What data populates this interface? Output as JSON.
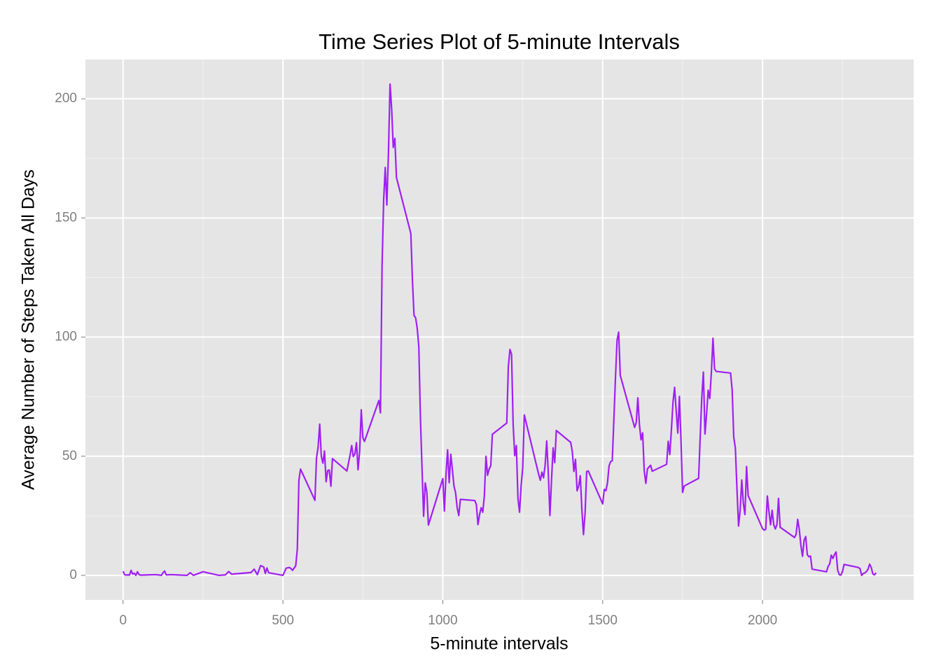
{
  "chart_data": {
    "type": "line",
    "title": "Time Series Plot of 5-minute Intervals",
    "x_label": "5-minute intervals",
    "y_label": "Average Number of Steps Taken All Days",
    "xlim": [
      -117.75,
      2472.75
    ],
    "ylim": [
      -10.3,
      216.5
    ],
    "xticks": [
      0,
      500,
      1000,
      1500,
      2000
    ],
    "yticks": [
      0,
      50,
      100,
      150,
      200
    ],
    "x_minor_ticks": [
      250,
      750,
      1250,
      1750,
      2250
    ],
    "y_minor_ticks": [
      25,
      75,
      125,
      175
    ],
    "grid": true,
    "x": [
      0,
      5,
      10,
      15,
      20,
      25,
      30,
      35,
      40,
      45,
      50,
      55,
      100,
      110,
      120,
      125,
      130,
      135,
      150,
      200,
      210,
      220,
      250,
      300,
      320,
      330,
      340,
      400,
      410,
      420,
      430,
      440,
      445,
      450,
      455,
      500,
      505,
      510,
      520,
      525,
      530,
      540,
      545,
      550,
      555,
      600,
      605,
      610,
      615,
      620,
      625,
      630,
      635,
      640,
      645,
      650,
      655,
      700,
      710,
      715,
      720,
      725,
      730,
      735,
      740,
      745,
      750,
      755,
      800,
      805,
      810,
      815,
      820,
      825,
      830,
      835,
      840,
      845,
      850,
      855,
      900,
      905,
      910,
      915,
      920,
      925,
      930,
      935,
      940,
      945,
      950,
      955,
      1000,
      1005,
      1010,
      1015,
      1020,
      1025,
      1030,
      1035,
      1040,
      1045,
      1050,
      1055,
      1100,
      1105,
      1110,
      1115,
      1120,
      1125,
      1130,
      1135,
      1140,
      1145,
      1150,
      1155,
      1200,
      1205,
      1210,
      1215,
      1220,
      1225,
      1230,
      1235,
      1240,
      1245,
      1250,
      1255,
      1300,
      1305,
      1310,
      1315,
      1320,
      1325,
      1330,
      1335,
      1340,
      1345,
      1350,
      1355,
      1400,
      1405,
      1410,
      1415,
      1420,
      1425,
      1430,
      1435,
      1440,
      1445,
      1450,
      1455,
      1500,
      1505,
      1510,
      1515,
      1520,
      1525,
      1530,
      1535,
      1540,
      1545,
      1550,
      1555,
      1600,
      1605,
      1610,
      1615,
      1620,
      1625,
      1630,
      1635,
      1640,
      1645,
      1650,
      1655,
      1700,
      1705,
      1710,
      1715,
      1720,
      1725,
      1730,
      1735,
      1740,
      1745,
      1750,
      1755,
      1800,
      1805,
      1810,
      1815,
      1820,
      1825,
      1830,
      1835,
      1840,
      1845,
      1850,
      1855,
      1900,
      1905,
      1910,
      1915,
      1920,
      1925,
      1930,
      1935,
      1940,
      1945,
      1950,
      1955,
      2000,
      2005,
      2010,
      2015,
      2020,
      2025,
      2030,
      2035,
      2040,
      2045,
      2050,
      2055,
      2100,
      2105,
      2110,
      2115,
      2120,
      2125,
      2130,
      2135,
      2140,
      2145,
      2150,
      2155,
      2200,
      2205,
      2210,
      2215,
      2220,
      2225,
      2230,
      2235,
      2240,
      2245,
      2250,
      2255,
      2300,
      2305,
      2310,
      2315,
      2320,
      2325,
      2330,
      2335,
      2340,
      2345,
      2350,
      2355
    ],
    "series": [
      {
        "name": "steps",
        "color": "#a020f0",
        "values": [
          1.7,
          0.3,
          0.1,
          0.2,
          0.1,
          2.1,
          0.5,
          0.9,
          0,
          1.5,
          0.3,
          0.1,
          0.3,
          0.2,
          0,
          1.1,
          1.8,
          0.2,
          0.3,
          0,
          1.1,
          0,
          1.5,
          0,
          0.2,
          1.6,
          0.5,
          1.2,
          2.6,
          0.3,
          4.1,
          3.5,
          0.8,
          3.1,
          1.1,
          0,
          1.5,
          3.0,
          3.3,
          2.9,
          2.1,
          4.0,
          11,
          40.0,
          44.6,
          31.5,
          49.3,
          53.8,
          63.5,
          50.0,
          47.1,
          52.2,
          39.3,
          44.0,
          44.2,
          37.4,
          49.0,
          43.8,
          50.5,
          54.5,
          49.9,
          50.9,
          55.7,
          44.3,
          52.3,
          69.5,
          57.8,
          56.2,
          73.4,
          68.2,
          129.4,
          157.5,
          171.2,
          155.4,
          177.3,
          206.2,
          195.9,
          179.6,
          183.4,
          167.0,
          143.5,
          124.0,
          109.1,
          108.1,
          103.7,
          95.97,
          66.2,
          45.2,
          24.8,
          38.8,
          35.0,
          21.1,
          40.6,
          27.0,
          42.4,
          52.7,
          38.9,
          50.8,
          44.3,
          37.4,
          34.7,
          28.3,
          25.1,
          31.9,
          31.4,
          29.7,
          21.3,
          25.5,
          28.4,
          26.5,
          33.4,
          49.98,
          42.0,
          44.6,
          46.0,
          59.2,
          63.9,
          87.7,
          94.8,
          92.8,
          63.4,
          50.2,
          54.5,
          32.4,
          26.5,
          37.7,
          45.1,
          67.3,
          42.3,
          39.9,
          43.3,
          40.98,
          46.2,
          56.4,
          42.75,
          25.1,
          39.97,
          53.5,
          47.3,
          60.8,
          55.8,
          51.96,
          43.6,
          48.7,
          35.5,
          37.5,
          41.8,
          27.5,
          17.1,
          26.1,
          43.6,
          43.8,
          30.0,
          36.1,
          35.5,
          38.8,
          45.96,
          47.75,
          48.1,
          65.3,
          82.9,
          98.7,
          102.1,
          83.96,
          62.1,
          64.1,
          74.5,
          63.2,
          56.9,
          59.8,
          43.9,
          38.6,
          44.7,
          45.5,
          46.2,
          43.7,
          46.6,
          56.3,
          50.7,
          61.2,
          72.7,
          78.9,
          68.9,
          59.7,
          75.1,
          56.5,
          34.8,
          37.5,
          40.7,
          58.0,
          74.7,
          85.3,
          59.3,
          67.8,
          77.7,
          74.2,
          85.3,
          99.5,
          86.6,
          85.6,
          84.9,
          77.8,
          58.0,
          53.4,
          36.3,
          20.7,
          27.4,
          40.0,
          30.2,
          25.5,
          45.7,
          33.5,
          19.6,
          19.0,
          19.3,
          33.3,
          26.8,
          21.2,
          27.3,
          21.3,
          19.5,
          21.3,
          32.3,
          20.2,
          15.9,
          17.2,
          23.5,
          19.2,
          12.5,
          8.0,
          14.7,
          16.3,
          8.7,
          7.8,
          8.1,
          2.6,
          1.5,
          3.7,
          4.8,
          8.5,
          7.1,
          8.7,
          9.8,
          2.2,
          0.3,
          0.1,
          1.6,
          4.6,
          3.3,
          2.8,
          0,
          0.8,
          1.0,
          1.6,
          2.6,
          4.7,
          3.3,
          0.6,
          0.2,
          1.1
        ]
      }
    ]
  }
}
